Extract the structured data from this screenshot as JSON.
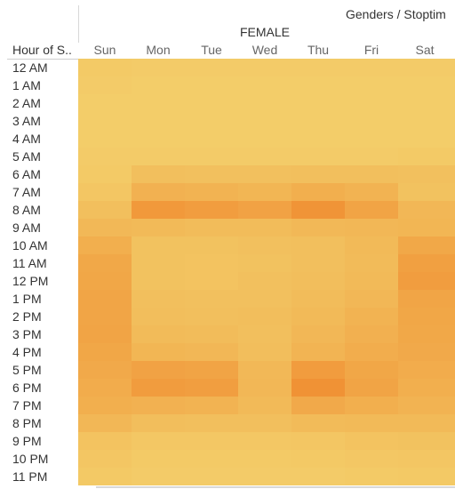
{
  "title": "Genders / Stoptim",
  "gender_label": "FEMALE",
  "row_header": "Hour of S..",
  "chart_data": {
    "type": "heatmap",
    "title": "Genders / Stoptim",
    "column_group": "FEMALE",
    "row_header": "Hour of S..",
    "columns": [
      "Sun",
      "Mon",
      "Tue",
      "Wed",
      "Thu",
      "Fri",
      "Sat"
    ],
    "rows": [
      "12 AM",
      "1 AM",
      "2 AM",
      "3 AM",
      "4 AM",
      "5 AM",
      "6 AM",
      "7 AM",
      "8 AM",
      "9 AM",
      "10 AM",
      "11 AM",
      "12 PM",
      "1 PM",
      "2 PM",
      "3 PM",
      "4 PM",
      "5 PM",
      "6 PM",
      "7 PM",
      "8 PM",
      "9 PM",
      "10 PM",
      "11 PM"
    ],
    "value_scale": "relative intensity (0 = light yellow, 1 = deep orange)",
    "color_low": "#F3CE6A",
    "color_high": "#F08A2E",
    "values": [
      [
        0.06,
        0.04,
        0.04,
        0.04,
        0.04,
        0.04,
        0.04
      ],
      [
        0.04,
        0.02,
        0.02,
        0.02,
        0.02,
        0.02,
        0.02
      ],
      [
        0.02,
        0.02,
        0.02,
        0.02,
        0.02,
        0.02,
        0.02
      ],
      [
        0.02,
        0.02,
        0.02,
        0.02,
        0.02,
        0.02,
        0.02
      ],
      [
        0.02,
        0.02,
        0.02,
        0.02,
        0.02,
        0.02,
        0.02
      ],
      [
        0.04,
        0.04,
        0.04,
        0.04,
        0.04,
        0.04,
        0.06
      ],
      [
        0.06,
        0.22,
        0.2,
        0.2,
        0.22,
        0.22,
        0.2
      ],
      [
        0.12,
        0.42,
        0.4,
        0.36,
        0.46,
        0.4,
        0.18
      ],
      [
        0.22,
        0.78,
        0.72,
        0.64,
        0.85,
        0.62,
        0.34
      ],
      [
        0.32,
        0.3,
        0.26,
        0.26,
        0.32,
        0.34,
        0.36
      ],
      [
        0.46,
        0.18,
        0.18,
        0.2,
        0.22,
        0.3,
        0.56
      ],
      [
        0.56,
        0.18,
        0.16,
        0.18,
        0.22,
        0.28,
        0.68
      ],
      [
        0.58,
        0.18,
        0.16,
        0.2,
        0.24,
        0.3,
        0.72
      ],
      [
        0.6,
        0.22,
        0.2,
        0.2,
        0.26,
        0.34,
        0.6
      ],
      [
        0.6,
        0.24,
        0.22,
        0.24,
        0.3,
        0.4,
        0.58
      ],
      [
        0.62,
        0.28,
        0.26,
        0.22,
        0.34,
        0.44,
        0.56
      ],
      [
        0.58,
        0.36,
        0.34,
        0.24,
        0.38,
        0.48,
        0.54
      ],
      [
        0.54,
        0.64,
        0.62,
        0.32,
        0.74,
        0.58,
        0.5
      ],
      [
        0.5,
        0.74,
        0.7,
        0.34,
        0.88,
        0.62,
        0.46
      ],
      [
        0.46,
        0.42,
        0.4,
        0.3,
        0.54,
        0.46,
        0.4
      ],
      [
        0.34,
        0.24,
        0.22,
        0.22,
        0.28,
        0.3,
        0.3
      ],
      [
        0.16,
        0.1,
        0.1,
        0.1,
        0.12,
        0.16,
        0.18
      ],
      [
        0.12,
        0.06,
        0.06,
        0.06,
        0.08,
        0.1,
        0.12
      ],
      [
        0.08,
        0.04,
        0.04,
        0.04,
        0.04,
        0.06,
        0.08
      ]
    ]
  }
}
